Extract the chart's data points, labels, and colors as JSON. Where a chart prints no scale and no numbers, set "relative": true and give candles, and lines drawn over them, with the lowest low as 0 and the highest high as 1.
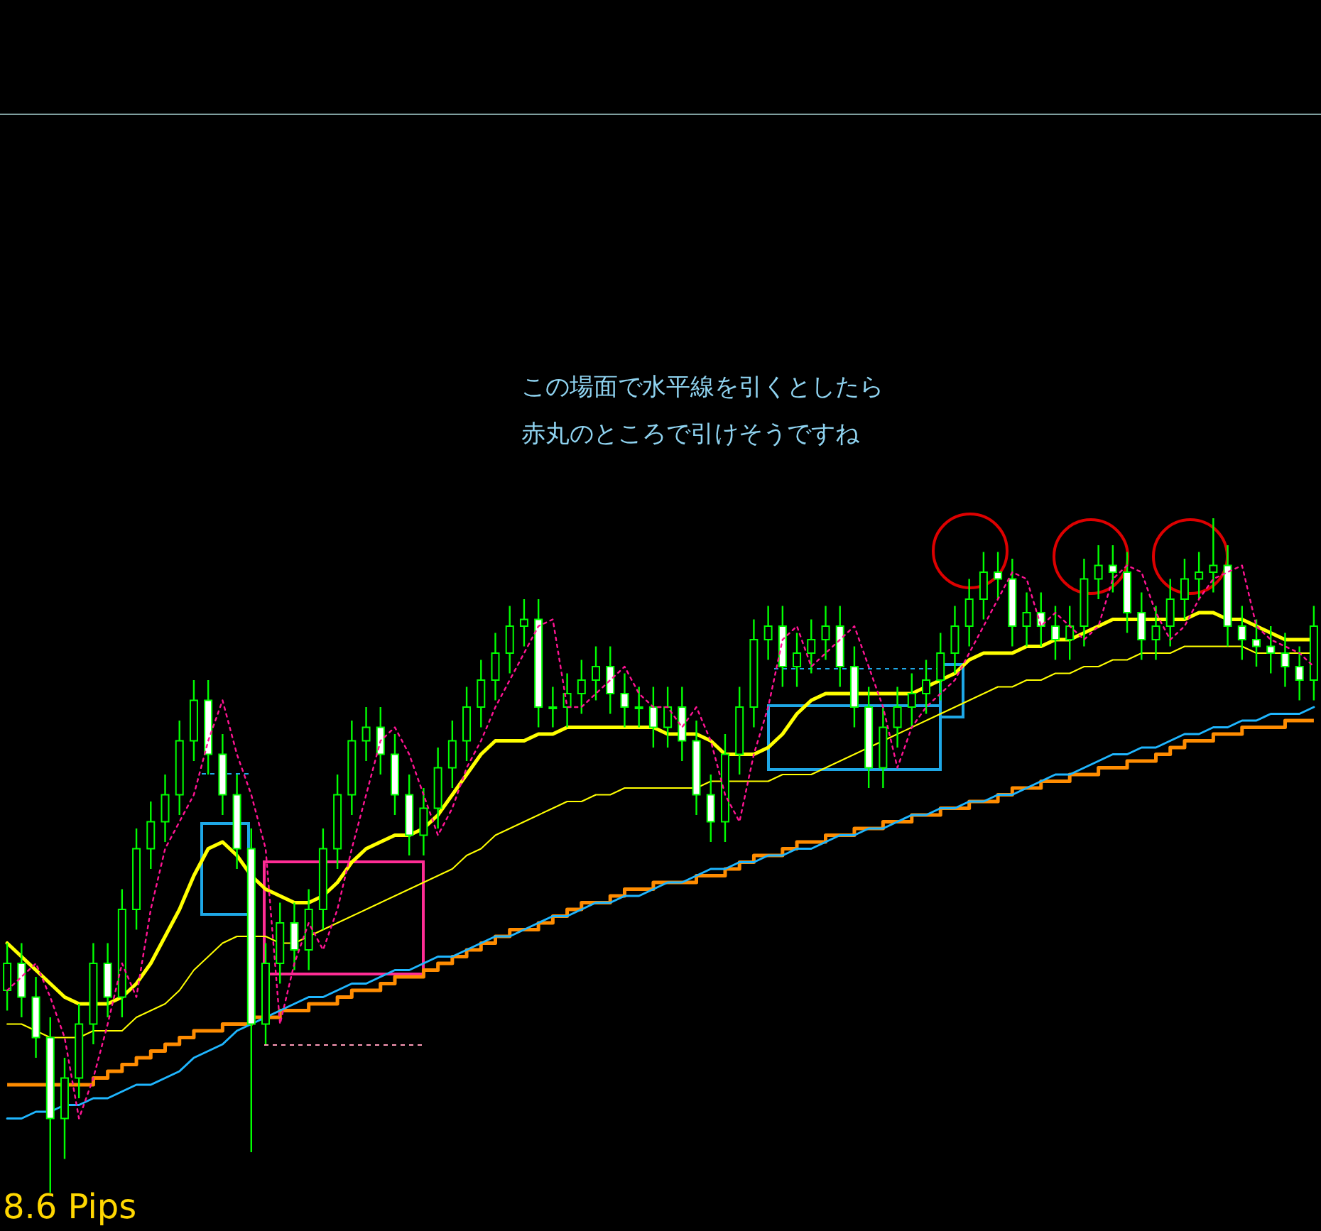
{
  "chart_data": {
    "type": "candlestick",
    "relative": true,
    "grid": false,
    "categories": [
      null,
      null,
      null,
      null,
      null,
      null,
      null,
      null,
      null,
      null,
      null,
      null,
      null,
      null,
      null,
      null,
      null,
      null,
      null,
      null,
      null,
      null,
      null,
      null,
      null,
      null,
      null,
      null,
      null,
      null,
      null,
      null,
      null,
      null,
      null,
      null,
      null,
      null,
      null,
      null,
      null,
      null,
      null,
      null,
      null,
      null,
      null,
      null,
      null,
      null,
      null,
      null,
      null,
      null,
      null,
      null,
      null,
      null,
      null,
      null,
      null,
      null,
      null,
      null,
      null,
      null,
      null,
      null,
      null,
      null,
      null,
      null,
      null,
      null,
      null,
      null,
      null,
      null,
      null,
      null,
      null,
      null,
      null,
      null,
      null,
      null,
      null,
      null,
      null,
      null,
      null,
      null
    ],
    "color": "#00ff00",
    "ohlc": [
      [
        0.3,
        0.37,
        0.27,
        0.34
      ],
      [
        0.34,
        0.37,
        0.26,
        0.29
      ],
      [
        0.29,
        0.32,
        0.2,
        0.23
      ],
      [
        0.23,
        0.26,
        0,
        0.11
      ],
      [
        0.11,
        0.2,
        0.05,
        0.17
      ],
      [
        0.17,
        0.28,
        0.14,
        0.25
      ],
      [
        0.25,
        0.37,
        0.22,
        0.34
      ],
      [
        0.34,
        0.37,
        0.26,
        0.29
      ],
      [
        0.29,
        0.45,
        0.26,
        0.42
      ],
      [
        0.42,
        0.54,
        0.39,
        0.51
      ],
      [
        0.51,
        0.58,
        0.48,
        0.55
      ],
      [
        0.55,
        0.62,
        0.52,
        0.59
      ],
      [
        0.59,
        0.7,
        0.56,
        0.67
      ],
      [
        0.67,
        0.76,
        0.64,
        0.73
      ],
      [
        0.73,
        0.76,
        0.62,
        0.65
      ],
      [
        0.65,
        0.68,
        0.56,
        0.59
      ],
      [
        0.59,
        0.62,
        0.48,
        0.51
      ],
      [
        0.51,
        0.54,
        0.06,
        0.25
      ],
      [
        0.25,
        0.37,
        0.22,
        0.34
      ],
      [
        0.34,
        0.43,
        0.31,
        0.4
      ],
      [
        0.4,
        0.43,
        0.33,
        0.36
      ],
      [
        0.36,
        0.45,
        0.33,
        0.42
      ],
      [
        0.42,
        0.54,
        0.39,
        0.51
      ],
      [
        0.51,
        0.62,
        0.48,
        0.59
      ],
      [
        0.59,
        0.7,
        0.56,
        0.67
      ],
      [
        0.67,
        0.72,
        0.64,
        0.69
      ],
      [
        0.69,
        0.72,
        0.62,
        0.65
      ],
      [
        0.65,
        0.68,
        0.56,
        0.59
      ],
      [
        0.59,
        0.62,
        0.5,
        0.53
      ],
      [
        0.53,
        0.6,
        0.5,
        0.57
      ],
      [
        0.57,
        0.66,
        0.54,
        0.63
      ],
      [
        0.63,
        0.7,
        0.6,
        0.67
      ],
      [
        0.67,
        0.75,
        0.64,
        0.72
      ],
      [
        0.72,
        0.79,
        0.69,
        0.76
      ],
      [
        0.76,
        0.83,
        0.73,
        0.8
      ],
      [
        0.8,
        0.87,
        0.77,
        0.84
      ],
      [
        0.84,
        0.88,
        0.81,
        0.85
      ],
      [
        0.85,
        0.88,
        0.69,
        0.72
      ],
      [
        0.72,
        0.75,
        0.69,
        0.72
      ],
      [
        0.72,
        0.77,
        0.69,
        0.74
      ],
      [
        0.74,
        0.79,
        0.71,
        0.76
      ],
      [
        0.76,
        0.81,
        0.73,
        0.78
      ],
      [
        0.78,
        0.81,
        0.71,
        0.74
      ],
      [
        0.74,
        0.77,
        0.69,
        0.72
      ],
      [
        0.72,
        0.75,
        0.69,
        0.72
      ],
      [
        0.72,
        0.75,
        0.66,
        0.69
      ],
      [
        0.69,
        0.75,
        0.66,
        0.72
      ],
      [
        0.72,
        0.75,
        0.64,
        0.67
      ],
      [
        0.67,
        0.7,
        0.56,
        0.59
      ],
      [
        0.59,
        0.62,
        0.52,
        0.55
      ],
      [
        0.55,
        0.68,
        0.52,
        0.65
      ],
      [
        0.65,
        0.75,
        0.62,
        0.72
      ],
      [
        0.72,
        0.85,
        0.69,
        0.82
      ],
      [
        0.82,
        0.87,
        0.79,
        0.84
      ],
      [
        0.84,
        0.87,
        0.75,
        0.78
      ],
      [
        0.78,
        0.83,
        0.75,
        0.8
      ],
      [
        0.8,
        0.85,
        0.77,
        0.82
      ],
      [
        0.82,
        0.87,
        0.79,
        0.84
      ],
      [
        0.84,
        0.87,
        0.75,
        0.78
      ],
      [
        0.78,
        0.81,
        0.69,
        0.72
      ],
      [
        0.72,
        0.75,
        0.6,
        0.63
      ],
      [
        0.63,
        0.72,
        0.6,
        0.69
      ],
      [
        0.69,
        0.75,
        0.66,
        0.72
      ],
      [
        0.72,
        0.77,
        0.69,
        0.74
      ],
      [
        0.74,
        0.79,
        0.71,
        0.76
      ],
      [
        0.76,
        0.83,
        0.73,
        0.8
      ],
      [
        0.8,
        0.87,
        0.77,
        0.84
      ],
      [
        0.84,
        0.91,
        0.81,
        0.88
      ],
      [
        0.88,
        0.95,
        0.85,
        0.92
      ],
      [
        0.92,
        0.95,
        0.88,
        0.91
      ],
      [
        0.91,
        0.94,
        0.81,
        0.84
      ],
      [
        0.84,
        0.89,
        0.81,
        0.86
      ],
      [
        0.86,
        0.89,
        0.81,
        0.84
      ],
      [
        0.84,
        0.87,
        0.79,
        0.82
      ],
      [
        0.82,
        0.87,
        0.79,
        0.84
      ],
      [
        0.84,
        0.94,
        0.81,
        0.91
      ],
      [
        0.91,
        0.96,
        0.88,
        0.93
      ],
      [
        0.93,
        0.96,
        0.89,
        0.92
      ],
      [
        0.92,
        0.95,
        0.83,
        0.86
      ],
      [
        0.86,
        0.89,
        0.79,
        0.82
      ],
      [
        0.82,
        0.87,
        0.79,
        0.84
      ],
      [
        0.84,
        0.91,
        0.81,
        0.88
      ],
      [
        0.88,
        0.94,
        0.85,
        0.91
      ],
      [
        0.91,
        0.95,
        0.88,
        0.92
      ],
      [
        0.92,
        1,
        0.89,
        0.93
      ],
      [
        0.93,
        0.96,
        0.81,
        0.84
      ],
      [
        0.84,
        0.87,
        0.79,
        0.82
      ],
      [
        0.82,
        0.85,
        0.78,
        0.81
      ],
      [
        0.81,
        0.84,
        0.77,
        0.8
      ],
      [
        0.8,
        0.83,
        0.75,
        0.78
      ],
      [
        0.78,
        0.81,
        0.73,
        0.76
      ],
      [
        0.76,
        0.87,
        0.73,
        0.84
      ]
    ],
    "series": [
      {
        "type": "line",
        "color": "#ffff00",
        "values": [
          0.37,
          0.35,
          0.33,
          0.31,
          0.29,
          0.28,
          0.28,
          0.28,
          0.29,
          0.31,
          0.34,
          0.38,
          0.42,
          0.47,
          0.51,
          0.52,
          0.5,
          0.47,
          0.45,
          0.44,
          0.43,
          0.43,
          0.44,
          0.46,
          0.49,
          0.51,
          0.52,
          0.53,
          0.53,
          0.54,
          0.56,
          0.59,
          0.62,
          0.65,
          0.67,
          0.67,
          0.67,
          0.68,
          0.68,
          0.69,
          0.69,
          0.69,
          0.69,
          0.69,
          0.69,
          0.69,
          0.68,
          0.68,
          0.68,
          0.67,
          0.65,
          0.65,
          0.65,
          0.66,
          0.68,
          0.71,
          0.73,
          0.74,
          0.74,
          0.74,
          0.74,
          0.74,
          0.74,
          0.74,
          0.75,
          0.76,
          0.77,
          0.79,
          0.8,
          0.8,
          0.8,
          0.81,
          0.81,
          0.82,
          0.82,
          0.83,
          0.84,
          0.85,
          0.85,
          0.85,
          0.85,
          0.85,
          0.85,
          0.86,
          0.86,
          0.85,
          0.85,
          0.84,
          0.83,
          0.82,
          0.82,
          0.82
        ]
      },
      {
        "type": "line",
        "color": "#ffff00",
        "values": [
          0.25,
          0.25,
          0.24,
          0.23,
          0.23,
          0.23,
          0.24,
          0.24,
          0.24,
          0.26,
          0.27,
          0.28,
          0.3,
          0.33,
          0.35,
          0.37,
          0.38,
          0.38,
          0.38,
          0.37,
          0.37,
          0.38,
          0.39,
          0.4,
          0.41,
          0.42,
          0.43,
          0.44,
          0.45,
          0.46,
          0.47,
          0.48,
          0.5,
          0.51,
          0.53,
          0.54,
          0.55,
          0.56,
          0.57,
          0.58,
          0.58,
          0.59,
          0.59,
          0.6,
          0.6,
          0.6,
          0.6,
          0.6,
          0.6,
          0.61,
          0.61,
          0.61,
          0.61,
          0.61,
          0.62,
          0.62,
          0.62,
          0.63,
          0.64,
          0.65,
          0.66,
          0.67,
          0.68,
          0.69,
          0.7,
          0.71,
          0.72,
          0.73,
          0.74,
          0.75,
          0.75,
          0.76,
          0.76,
          0.77,
          0.77,
          0.78,
          0.78,
          0.79,
          0.79,
          0.8,
          0.8,
          0.8,
          0.81,
          0.81,
          0.81,
          0.81,
          0.81,
          0.8,
          0.8,
          0.8,
          0.8,
          0.8
        ]
      },
      {
        "type": "step",
        "color": "#ff8c00",
        "values": [
          0.16,
          0.16,
          0.16,
          0.16,
          0.16,
          0.16,
          0.17,
          0.18,
          0.19,
          0.2,
          0.21,
          0.22,
          0.23,
          0.24,
          0.24,
          0.25,
          0.25,
          0.26,
          0.26,
          0.27,
          0.27,
          0.28,
          0.28,
          0.29,
          0.3,
          0.3,
          0.31,
          0.32,
          0.32,
          0.33,
          0.34,
          0.35,
          0.36,
          0.37,
          0.38,
          0.39,
          0.39,
          0.4,
          0.41,
          0.42,
          0.43,
          0.43,
          0.44,
          0.45,
          0.45,
          0.46,
          0.46,
          0.46,
          0.47,
          0.47,
          0.48,
          0.49,
          0.5,
          0.5,
          0.51,
          0.52,
          0.52,
          0.53,
          0.53,
          0.54,
          0.54,
          0.55,
          0.55,
          0.56,
          0.56,
          0.57,
          0.57,
          0.58,
          0.58,
          0.59,
          0.6,
          0.6,
          0.61,
          0.61,
          0.62,
          0.62,
          0.63,
          0.63,
          0.64,
          0.64,
          0.65,
          0.66,
          0.67,
          0.67,
          0.68,
          0.68,
          0.69,
          0.69,
          0.69,
          0.7,
          0.7,
          0.7
        ]
      },
      {
        "type": "line",
        "color": "#1fb6ff",
        "values": [
          0.11,
          0.11,
          0.12,
          0.12,
          0.13,
          0.13,
          0.14,
          0.14,
          0.15,
          0.16,
          0.16,
          0.17,
          0.18,
          0.2,
          0.21,
          0.22,
          0.24,
          0.25,
          0.26,
          0.27,
          0.28,
          0.29,
          0.29,
          0.3,
          0.31,
          0.31,
          0.32,
          0.33,
          0.33,
          0.34,
          0.35,
          0.35,
          0.36,
          0.37,
          0.38,
          0.38,
          0.39,
          0.4,
          0.41,
          0.41,
          0.42,
          0.43,
          0.43,
          0.44,
          0.44,
          0.45,
          0.46,
          0.46,
          0.47,
          0.48,
          0.48,
          0.49,
          0.49,
          0.5,
          0.5,
          0.51,
          0.51,
          0.52,
          0.53,
          0.53,
          0.54,
          0.54,
          0.55,
          0.56,
          0.56,
          0.57,
          0.57,
          0.58,
          0.58,
          0.59,
          0.59,
          0.6,
          0.61,
          0.62,
          0.62,
          0.63,
          0.64,
          0.65,
          0.65,
          0.66,
          0.66,
          0.67,
          0.68,
          0.68,
          0.69,
          0.69,
          0.7,
          0.7,
          0.71,
          0.71,
          0.71,
          0.72
        ]
      },
      {
        "type": "line",
        "color": "#ff1493",
        "line_style": "dotted",
        "values": [
          0.3,
          0.32,
          0.34,
          0.29,
          0.23,
          0.11,
          0.17,
          0.25,
          0.34,
          0.29,
          0.42,
          0.51,
          0.55,
          0.59,
          0.67,
          0.73,
          0.65,
          0.59,
          0.51,
          0.25,
          0.34,
          0.4,
          0.36,
          0.42,
          0.51,
          0.59,
          0.67,
          0.69,
          0.65,
          0.59,
          0.53,
          0.57,
          0.63,
          0.67,
          0.72,
          0.76,
          0.8,
          0.84,
          0.85,
          0.72,
          0.72,
          0.74,
          0.76,
          0.78,
          0.74,
          0.72,
          0.72,
          0.69,
          0.72,
          0.67,
          0.59,
          0.55,
          0.65,
          0.72,
          0.82,
          0.84,
          0.78,
          0.8,
          0.82,
          0.84,
          0.78,
          0.72,
          0.63,
          0.69,
          0.72,
          0.74,
          0.76,
          0.8,
          0.84,
          0.88,
          0.92,
          0.91,
          0.84,
          0.86,
          0.84,
          0.82,
          0.84,
          0.91,
          0.93,
          0.92,
          0.86,
          0.82,
          0.84,
          0.88,
          0.91,
          0.92,
          0.93,
          0.84,
          0.82,
          0.81,
          0.8,
          0.78
        ]
      }
    ],
    "annotations": [
      "この場面で水平線を引くとしたら",
      "赤丸のところで引けそうですね",
      "8.6 Pips"
    ]
  }
}
